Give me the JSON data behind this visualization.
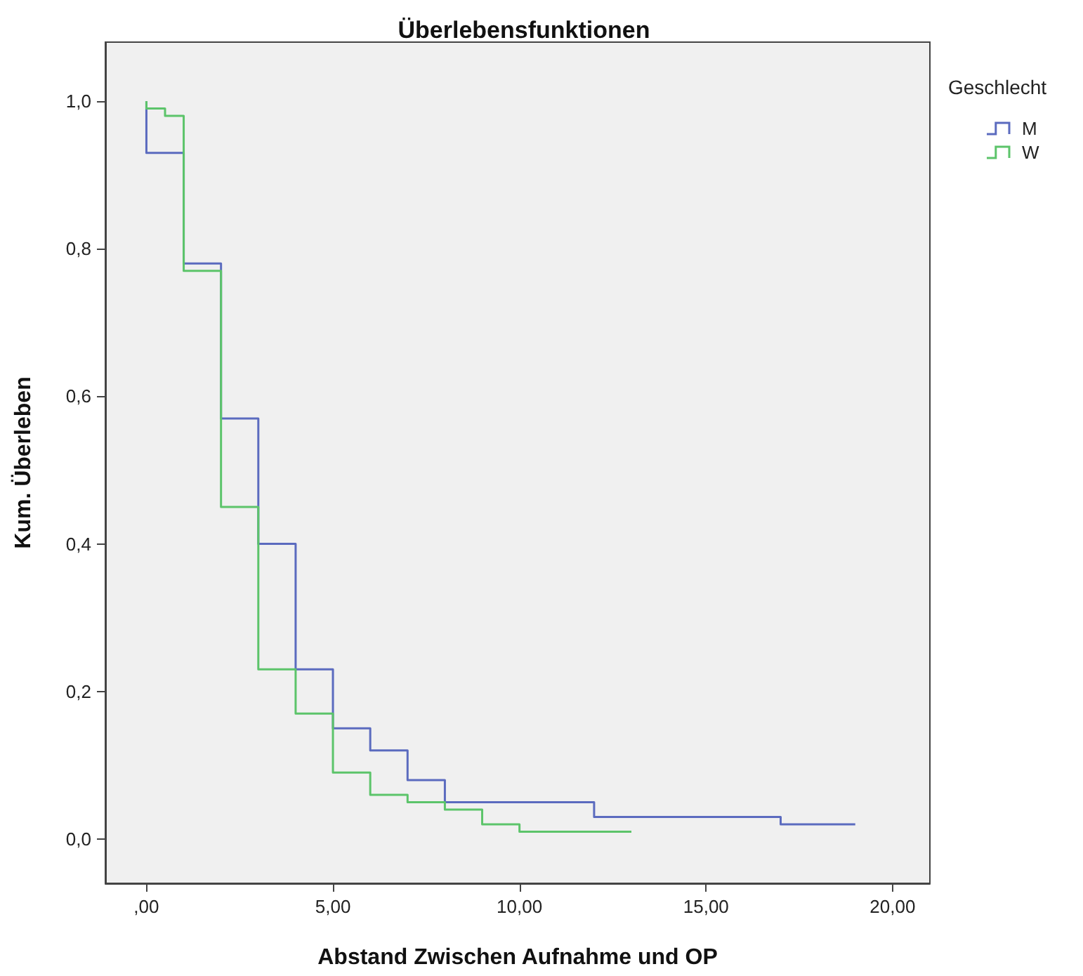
{
  "chart_data": {
    "type": "step",
    "title": "Überlebensfunktionen",
    "xlabel": "Abstand Zwischen Aufnahme und OP",
    "ylabel": "Kum. Überleben",
    "legend_title": "Geschlecht",
    "legend": "top right",
    "grid": false,
    "marker": "none",
    "line_style": "solid",
    "xlim": [
      -1.1,
      21
    ],
    "ylim": [
      -0.06,
      1.08
    ],
    "xticks": [
      {
        "value": 0,
        "label": ",00"
      },
      {
        "value": 5,
        "label": "5,00"
      },
      {
        "value": 10,
        "label": "10,00"
      },
      {
        "value": 15,
        "label": "15,00"
      },
      {
        "value": 20,
        "label": "20,00"
      }
    ],
    "yticks": [
      {
        "value": 0,
        "label": "0,0"
      },
      {
        "value": 0.2,
        "label": "0,2"
      },
      {
        "value": 0.4,
        "label": "0,4"
      },
      {
        "value": 0.6,
        "label": "0,6"
      },
      {
        "value": 0.8,
        "label": "0,8"
      },
      {
        "value": 1,
        "label": "1,0"
      }
    ],
    "series": [
      {
        "name": "M",
        "color": "#5b6bbf",
        "x": [
          0,
          0,
          1,
          2,
          3,
          4,
          5,
          6,
          7,
          8,
          12,
          17,
          19
        ],
        "values": [
          1.0,
          0.93,
          0.78,
          0.57,
          0.4,
          0.23,
          0.15,
          0.12,
          0.08,
          0.05,
          0.03,
          0.02,
          0.02
        ]
      },
      {
        "name": "W",
        "color": "#5cc46a",
        "x": [
          0,
          0,
          0.5,
          1,
          2,
          3,
          4,
          5,
          6,
          7,
          8,
          9,
          10,
          13
        ],
        "values": [
          1.0,
          0.99,
          0.98,
          0.77,
          0.45,
          0.23,
          0.17,
          0.09,
          0.06,
          0.05,
          0.04,
          0.02,
          0.01,
          0.01
        ]
      }
    ]
  }
}
